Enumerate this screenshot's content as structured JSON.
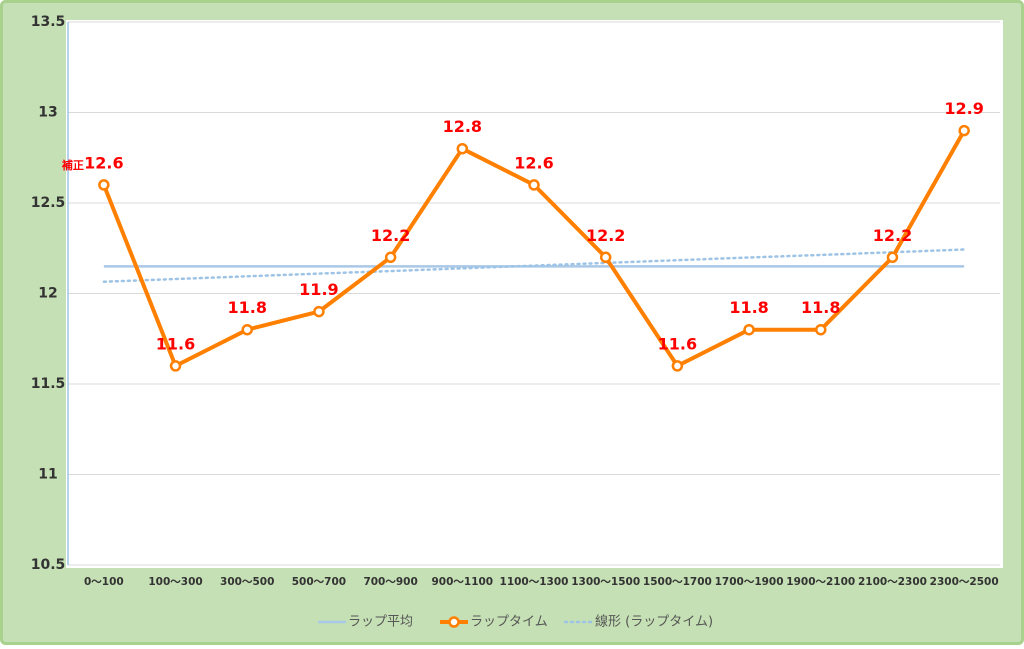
{
  "chart_data": {
    "type": "line",
    "categories": [
      "0～100",
      "100～300",
      "300～500",
      "500～700",
      "700～900",
      "900～1100",
      "1100～1300",
      "1300～1500",
      "1500～1700",
      "1700～1900",
      "1900～2100",
      "2100～2300",
      "2300～2500"
    ],
    "series": [
      {
        "name": "ラップ平均",
        "color": "#a9c8e6",
        "style": "solid",
        "values": [
          12.15,
          12.15,
          12.15,
          12.15,
          12.15,
          12.15,
          12.15,
          12.15,
          12.15,
          12.15,
          12.15,
          12.15,
          12.15
        ]
      },
      {
        "name": "ラップタイム",
        "color": "#ff8000",
        "style": "marker",
        "data_labels": true,
        "values": [
          12.6,
          11.6,
          11.8,
          11.9,
          12.2,
          12.8,
          12.6,
          12.2,
          11.6,
          11.8,
          11.8,
          12.2,
          12.9
        ]
      },
      {
        "name": "線形 (ラップタイム)",
        "color": "#9dc3e6",
        "style": "dotted",
        "values": [
          12.065,
          12.08,
          12.095,
          12.11,
          12.124,
          12.139,
          12.154,
          12.169,
          12.184,
          12.199,
          12.213,
          12.228,
          12.243
        ]
      }
    ],
    "annotation": "補正",
    "ylim": [
      10.5,
      13.5
    ],
    "yticks": [
      10.5,
      11,
      11.5,
      12,
      12.5,
      13,
      13.5
    ],
    "grid": true,
    "legend": "bottom"
  }
}
